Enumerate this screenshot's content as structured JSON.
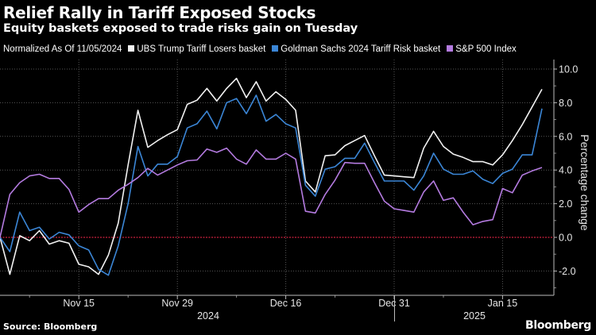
{
  "header": {
    "title": "Relief Rally in Tariff Exposed Stocks",
    "subtitle": "Equity baskets exposed to trade risks gain on Tuesday"
  },
  "legend": {
    "note": "Normalized As Of 11/05/2024",
    "items": [
      {
        "label": "UBS Trump Tariff Losers basket",
        "color": "#f2f2f2"
      },
      {
        "label": "Goldman Sachs 2024 Tariff Risk basket",
        "color": "#3b86d6"
      },
      {
        "label": "S&P 500 Index",
        "color": "#b47be0"
      }
    ]
  },
  "footer": {
    "source": "Source: Bloomberg",
    "logo": "Bloomberg"
  },
  "chart_data": {
    "type": "line",
    "title": "Relief Rally in Tariff Exposed Stocks",
    "subtitle": "Equity baskets exposed to trade risks gain on Tuesday",
    "ylabel": "Percentage change",
    "ylim": [
      -3.4,
      10.4
    ],
    "yticks": [
      "10.0",
      "8.0",
      "6.0",
      "4.0",
      "2.0",
      "0.0",
      "-2.0"
    ],
    "ytick_values": [
      10,
      8,
      6,
      4,
      2,
      0,
      -2
    ],
    "xticks": [
      {
        "label": "Nov 15",
        "date": "2024-11-15"
      },
      {
        "label": "Nov 29",
        "date": "2024-11-29"
      },
      {
        "label": "Dec 16",
        "date": "2024-12-16"
      },
      {
        "label": "Dec 31",
        "date": "2024-12-31"
      },
      {
        "label": "Jan 15",
        "date": "2025-01-15"
      }
    ],
    "year_labels": [
      "2024",
      "2025"
    ],
    "grid": true,
    "reference_line": {
      "y": 0,
      "color": "#d0223f"
    },
    "legend_position": "top",
    "x": [
      "2024-11-05",
      "2024-11-06",
      "2024-11-07",
      "2024-11-08",
      "2024-11-11",
      "2024-11-12",
      "2024-11-13",
      "2024-11-14",
      "2024-11-15",
      "2024-11-18",
      "2024-11-19",
      "2024-11-20",
      "2024-11-21",
      "2024-11-22",
      "2024-11-25",
      "2024-11-26",
      "2024-11-27",
      "2024-11-28",
      "2024-11-29",
      "2024-12-02",
      "2024-12-03",
      "2024-12-04",
      "2024-12-05",
      "2024-12-06",
      "2024-12-09",
      "2024-12-10",
      "2024-12-11",
      "2024-12-12",
      "2024-12-13",
      "2024-12-16",
      "2024-12-17",
      "2024-12-18",
      "2024-12-19",
      "2024-12-20",
      "2024-12-23",
      "2024-12-24",
      "2024-12-25",
      "2024-12-26",
      "2024-12-27",
      "2024-12-30",
      "2024-12-31",
      "2025-01-01",
      "2025-01-02",
      "2025-01-03",
      "2025-01-06",
      "2025-01-07",
      "2025-01-08",
      "2025-01-09",
      "2025-01-10",
      "2025-01-13",
      "2025-01-14",
      "2025-01-15",
      "2025-01-16",
      "2025-01-17",
      "2025-01-20",
      "2025-01-21"
    ],
    "series": [
      {
        "name": "UBS Trump Tariff Losers basket",
        "color": "#f2f2f2",
        "values": [
          0.0,
          -2.2,
          0.1,
          -0.2,
          0.4,
          -0.4,
          -0.2,
          -0.35,
          -1.6,
          -1.75,
          -2.2,
          -1.05,
          0.85,
          4.3,
          7.55,
          5.35,
          5.75,
          6.1,
          6.4,
          7.9,
          8.15,
          8.85,
          8.1,
          8.85,
          9.45,
          8.3,
          9.25,
          8.1,
          8.65,
          8.2,
          7.55,
          3.35,
          2.7,
          4.85,
          4.9,
          5.45,
          5.75,
          6.05,
          4.85,
          3.7,
          3.65,
          3.6,
          3.55,
          5.3,
          6.3,
          5.4,
          4.95,
          4.75,
          4.5,
          4.5,
          4.3,
          4.9,
          5.75,
          6.7,
          7.75,
          8.8
        ]
      },
      {
        "name": "Goldman Sachs 2024 Tariff Risk basket",
        "color": "#3b86d6",
        "values": [
          0.0,
          -0.85,
          1.5,
          0.4,
          0.6,
          -0.1,
          0.3,
          0.15,
          -0.5,
          -0.75,
          -1.9,
          -2.25,
          -0.5,
          2.0,
          5.4,
          3.65,
          4.35,
          4.35,
          4.8,
          6.5,
          6.75,
          7.5,
          6.45,
          8.0,
          8.25,
          7.35,
          8.45,
          6.9,
          7.3,
          6.75,
          6.5,
          3.1,
          2.45,
          4.05,
          4.2,
          4.7,
          4.7,
          5.6,
          4.45,
          3.35,
          3.35,
          3.35,
          2.8,
          3.65,
          5.0,
          4.05,
          3.75,
          3.75,
          3.95,
          3.45,
          3.2,
          3.8,
          4.05,
          4.9,
          4.9,
          7.65
        ]
      },
      {
        "name": "S&P 500 Index",
        "color": "#b47be0",
        "values": [
          0.0,
          2.55,
          3.25,
          3.65,
          3.75,
          3.5,
          3.5,
          2.85,
          1.5,
          1.95,
          2.3,
          2.3,
          2.8,
          3.15,
          3.55,
          4.1,
          3.7,
          4.0,
          4.3,
          4.55,
          4.6,
          5.25,
          5.05,
          5.3,
          4.65,
          4.35,
          5.2,
          4.65,
          4.65,
          5.0,
          4.65,
          1.55,
          1.45,
          2.55,
          3.4,
          4.45,
          4.4,
          4.4,
          3.25,
          2.15,
          1.7,
          1.6,
          1.5,
          2.7,
          3.35,
          2.2,
          2.35,
          1.5,
          0.75,
          0.95,
          1.05,
          2.9,
          2.65,
          3.7,
          3.95,
          4.15
        ]
      }
    ]
  }
}
